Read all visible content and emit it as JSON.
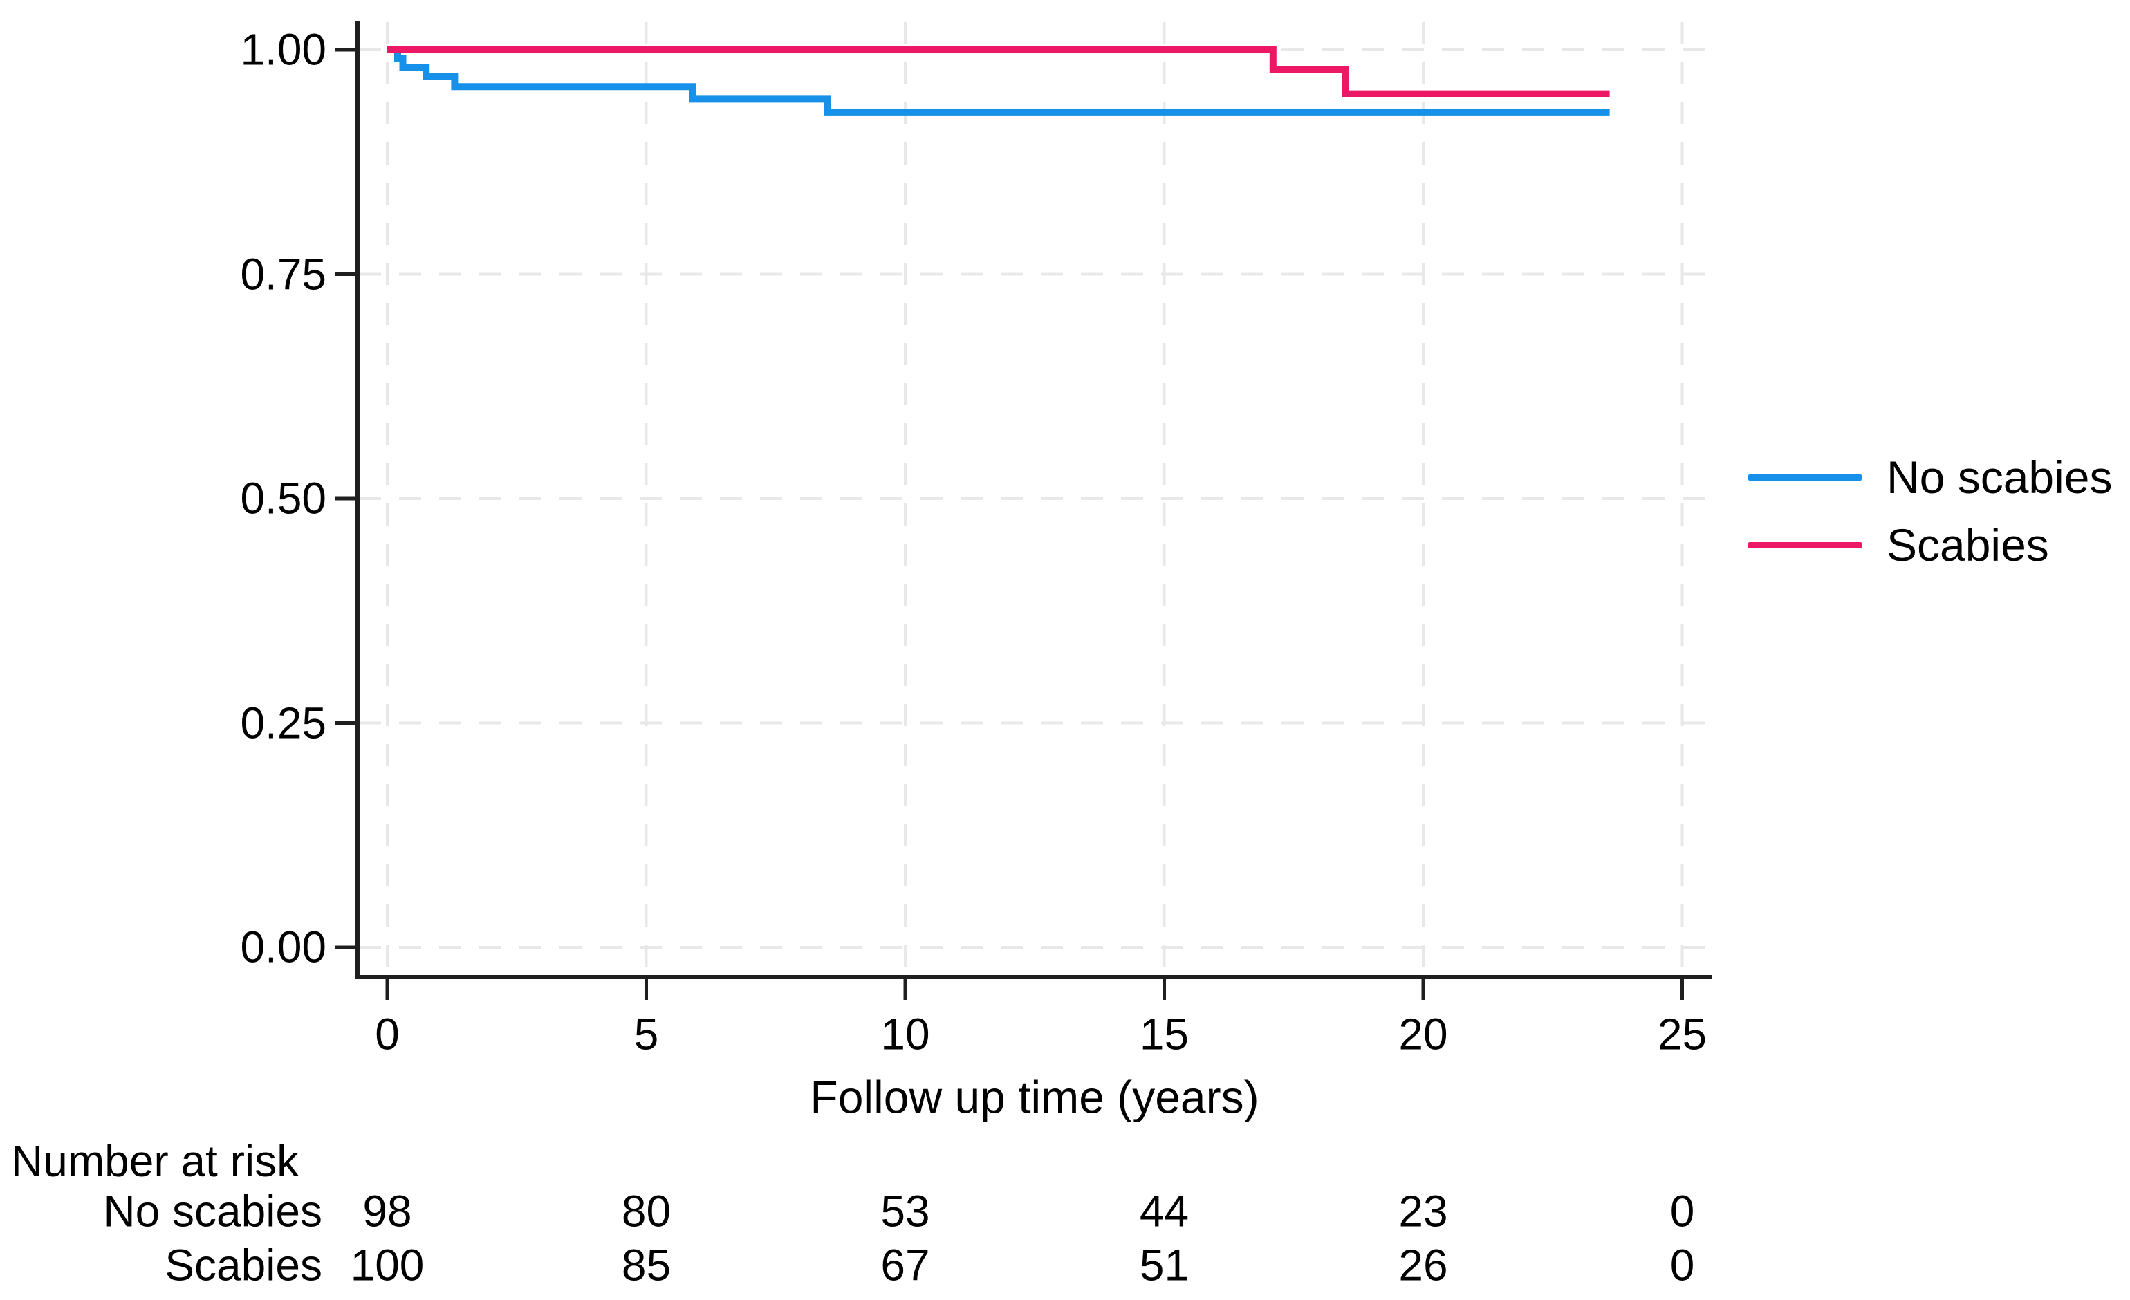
{
  "figure": {
    "background": "#ffffff",
    "text_color": "#000000"
  },
  "chart_data": {
    "type": "line",
    "subtype": "kaplan-meier-step-curves",
    "title": "",
    "xlabel": "Follow up time (years)",
    "ylabel": "",
    "xlim": [
      0,
      25
    ],
    "ylim": [
      0.0,
      1.0
    ],
    "x_ticks": [
      0,
      5,
      10,
      15,
      20,
      25
    ],
    "y_ticks": [
      {
        "label": "0.00",
        "value": 0.0
      },
      {
        "label": "0.25",
        "value": 0.25
      },
      {
        "label": "0.50",
        "value": 0.5
      },
      {
        "label": "0.75",
        "value": 0.75
      },
      {
        "label": "1.00",
        "value": 1.0
      }
    ],
    "grid": "dashed gridlines at every x and y tick",
    "grid_color": "#e8e8e8",
    "axis_color": "#1f1f1f",
    "legend_position": "right-of-plot",
    "follow_up_end": 23.6,
    "series": [
      {
        "name": "No scabies",
        "color": "#1690e8",
        "steps": [
          [
            0,
            1.0
          ],
          [
            0.2,
            0.99
          ],
          [
            0.3,
            0.98
          ],
          [
            0.75,
            0.97
          ],
          [
            1.3,
            0.959
          ],
          [
            5.9,
            0.945
          ],
          [
            8.5,
            0.93
          ]
        ]
      },
      {
        "name": "Scabies",
        "color": "#ec1765",
        "steps": [
          [
            0,
            1.0
          ],
          [
            17.1,
            0.978
          ],
          [
            18.5,
            0.951
          ]
        ]
      }
    ]
  },
  "risk_table": {
    "header": "Number at risk",
    "time_points": [
      0,
      5,
      10,
      15,
      20,
      25
    ],
    "rows": [
      {
        "label": "No scabies",
        "values": [
          98,
          80,
          53,
          44,
          23,
          0
        ]
      },
      {
        "label": "Scabies",
        "values": [
          100,
          85,
          67,
          51,
          26,
          0
        ]
      }
    ]
  }
}
